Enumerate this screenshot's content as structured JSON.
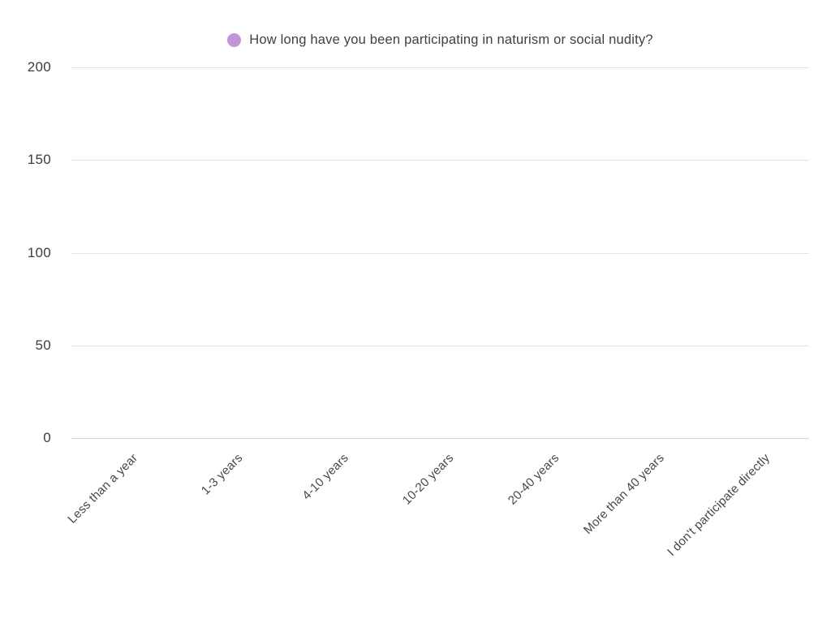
{
  "legend": {
    "label": "How long have you been participating in naturism or social nudity?",
    "marker_color": "#c495d6"
  },
  "chart_data": {
    "type": "bar",
    "title": "How long have you been participating in naturism or social nudity?",
    "categories": [
      "Less than a year",
      "1-3 years",
      "4-10 years",
      "10-20 years",
      "20-40 years",
      "More than 40 years",
      "I don't participate directly"
    ],
    "values": [
      0,
      0,
      0,
      0,
      0,
      0,
      0
    ],
    "xlabel": "",
    "ylabel": "",
    "ylim": [
      0,
      200
    ],
    "yticks": [
      200,
      150,
      100,
      50,
      0
    ],
    "grid": true,
    "legend_position": "top-center",
    "series_color": "#c495d6"
  },
  "colors": {
    "background": "#ffffff",
    "gridline": "#e3e3e3",
    "zero_line": "#d6d6d6",
    "title_text": "#3f3f3f",
    "axis_text": "#474747"
  }
}
